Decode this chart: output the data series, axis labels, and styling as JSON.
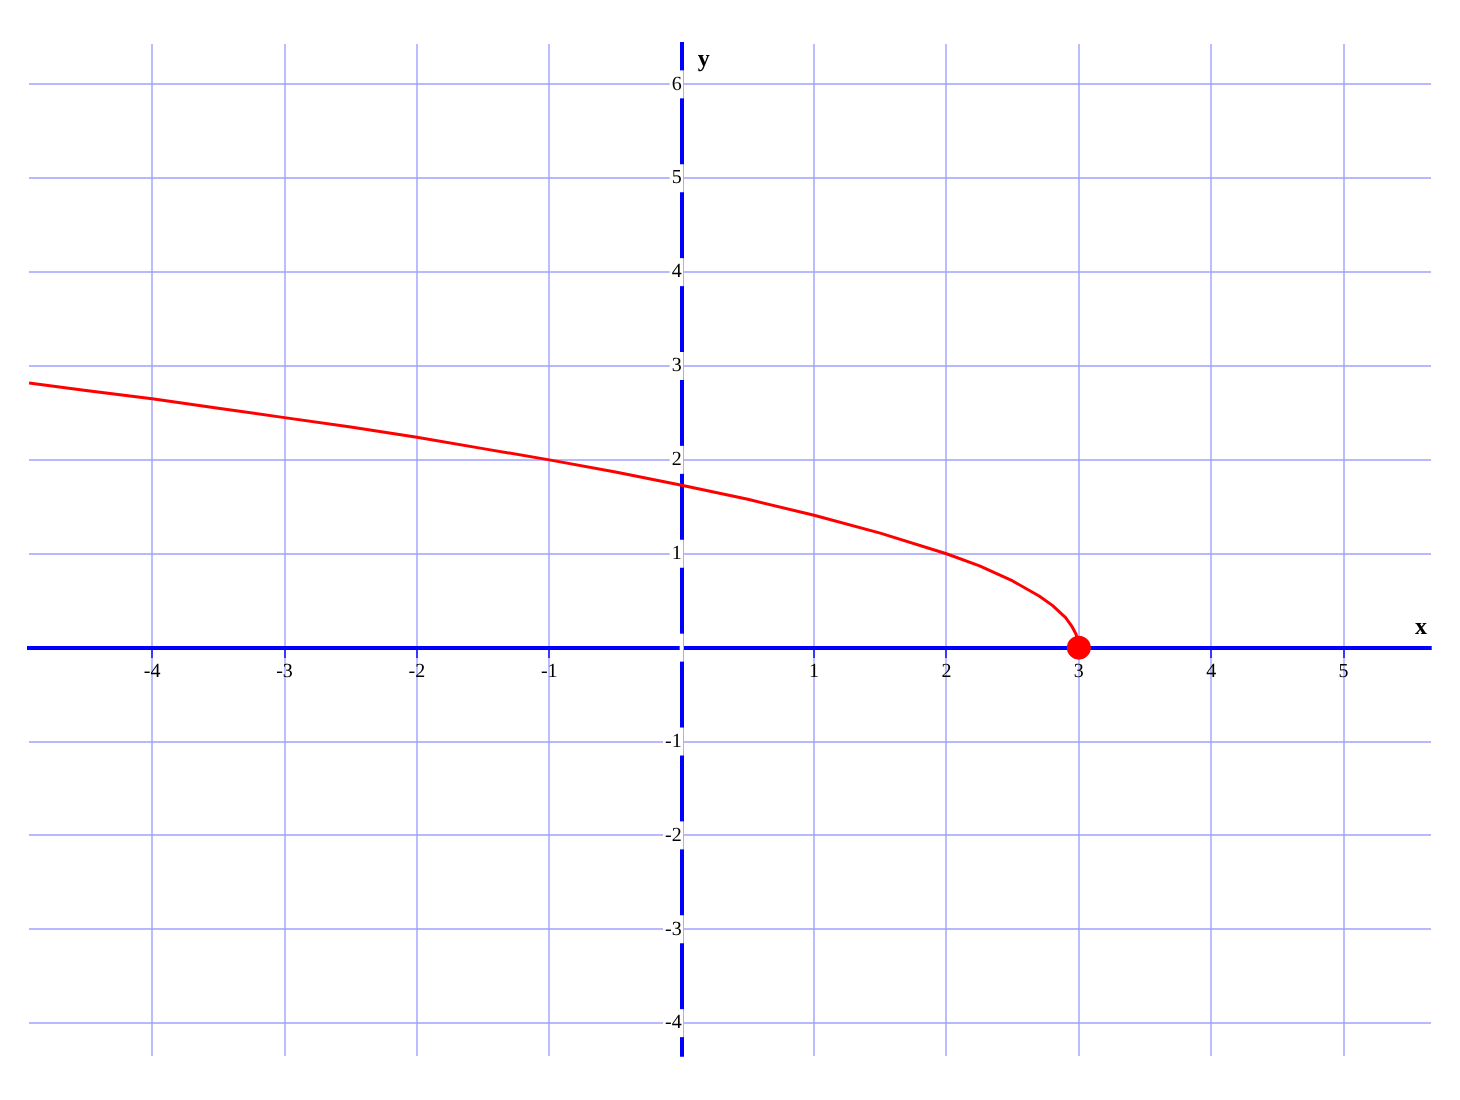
{
  "chart_data": {
    "type": "line",
    "xlabel": "x",
    "ylabel": "y",
    "x": [
      -4.93,
      -4.5,
      -4,
      -3.5,
      -3,
      -2.5,
      -2,
      -1.5,
      -1,
      -0.5,
      0,
      0.5,
      1,
      1.5,
      2,
      2.25,
      2.5,
      2.7,
      2.8,
      2.9,
      2.95,
      2.98,
      3
    ],
    "series": [
      {
        "color": "#ff0000",
        "values": [
          2.82,
          2.74,
          2.65,
          2.55,
          2.45,
          2.35,
          2.24,
          2.12,
          2,
          1.87,
          1.73,
          1.58,
          1.41,
          1.22,
          1,
          0.87,
          0.71,
          0.55,
          0.45,
          0.32,
          0.22,
          0.14,
          0
        ]
      },
      {
        "type": "scatter",
        "color": "#ff0000",
        "x": [
          3
        ],
        "values": [
          0
        ],
        "marker": "circle"
      }
    ],
    "xlim": [
      -4.93,
      5.66
    ],
    "ylim": [
      -4.35,
      6.43
    ],
    "xticks": [
      -4,
      -3,
      -2,
      -1,
      {
        "value": 0,
        "label": null
      },
      1,
      2,
      3,
      4,
      5
    ],
    "yticks": [
      -4,
      -3,
      -2,
      -1,
      {
        "value": 0,
        "label": null
      },
      1,
      2,
      3,
      4,
      5,
      6
    ],
    "grid": true,
    "legend": false,
    "line_style": "solid",
    "marker": "none"
  }
}
